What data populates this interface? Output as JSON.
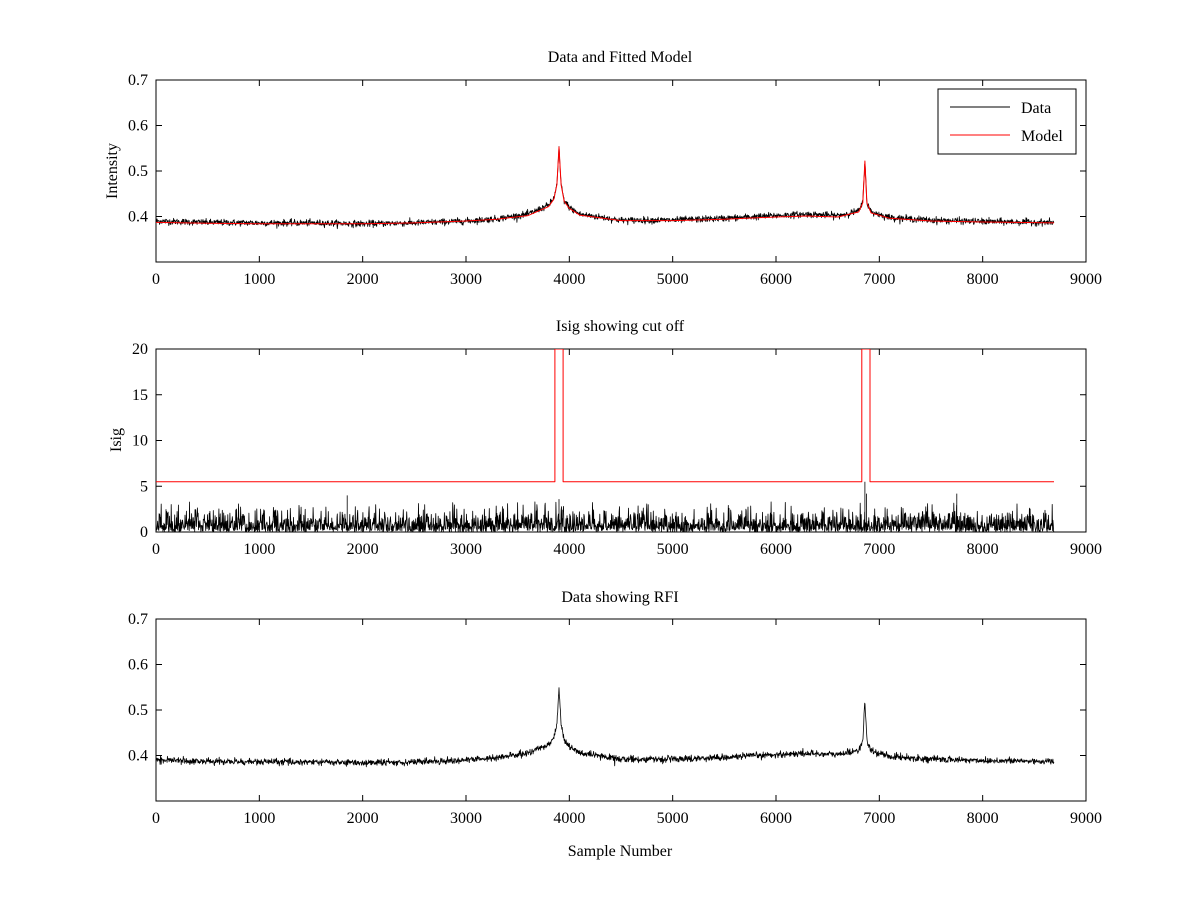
{
  "figure": {
    "background": "#ffffff"
  },
  "chart_data": [
    {
      "type": "line",
      "title": "Data and Fitted Model",
      "xlabel": "",
      "ylabel": "Intensity",
      "xlim": [
        0,
        9000
      ],
      "ylim": [
        0.3,
        0.7
      ],
      "xticks": [
        0,
        1000,
        2000,
        3000,
        4000,
        5000,
        6000,
        7000,
        8000,
        9000
      ],
      "yticks": [
        0.4,
        0.5,
        0.6,
        0.7
      ],
      "legend": {
        "placement": "top-right"
      },
      "grid": false,
      "series": [
        {
          "name": "Data",
          "color": "#000000",
          "kind": "noisy",
          "noise": 0.0035,
          "points": [
            [
              0,
              0.39
            ],
            [
              500,
              0.387
            ],
            [
              1000,
              0.386
            ],
            [
              1500,
              0.386
            ],
            [
              2000,
              0.384
            ],
            [
              2500,
              0.386
            ],
            [
              3000,
              0.39
            ],
            [
              3300,
              0.395
            ],
            [
              3600,
              0.405
            ],
            [
              3800,
              0.425
            ],
            [
              3850,
              0.44
            ],
            [
              3880,
              0.47
            ],
            [
              3900,
              0.55
            ],
            [
              3920,
              0.47
            ],
            [
              3950,
              0.435
            ],
            [
              4000,
              0.42
            ],
            [
              4100,
              0.405
            ],
            [
              4500,
              0.392
            ],
            [
              5000,
              0.392
            ],
            [
              5500,
              0.396
            ],
            [
              6000,
              0.402
            ],
            [
              6300,
              0.405
            ],
            [
              6600,
              0.402
            ],
            [
              6800,
              0.412
            ],
            [
              6840,
              0.43
            ],
            [
              6860,
              0.525
            ],
            [
              6880,
              0.43
            ],
            [
              6920,
              0.41
            ],
            [
              7100,
              0.398
            ],
            [
              7500,
              0.392
            ],
            [
              8000,
              0.389
            ],
            [
              8690,
              0.387
            ]
          ]
        },
        {
          "name": "Model",
          "color": "#ff0000",
          "kind": "smooth",
          "points": [
            [
              0,
              0.387
            ],
            [
              500,
              0.385
            ],
            [
              1000,
              0.384
            ],
            [
              1500,
              0.384
            ],
            [
              2000,
              0.384
            ],
            [
              2500,
              0.386
            ],
            [
              3000,
              0.39
            ],
            [
              3300,
              0.394
            ],
            [
              3600,
              0.402
            ],
            [
              3800,
              0.422
            ],
            [
              3850,
              0.438
            ],
            [
              3880,
              0.47
            ],
            [
              3900,
              0.553
            ],
            [
              3920,
              0.47
            ],
            [
              3950,
              0.433
            ],
            [
              4000,
              0.418
            ],
            [
              4100,
              0.403
            ],
            [
              4500,
              0.391
            ],
            [
              5000,
              0.391
            ],
            [
              5500,
              0.394
            ],
            [
              6000,
              0.399
            ],
            [
              6300,
              0.401
            ],
            [
              6600,
              0.399
            ],
            [
              6800,
              0.41
            ],
            [
              6840,
              0.43
            ],
            [
              6860,
              0.522
            ],
            [
              6880,
              0.43
            ],
            [
              6920,
              0.408
            ],
            [
              7100,
              0.396
            ],
            [
              7500,
              0.39
            ],
            [
              8000,
              0.388
            ],
            [
              8690,
              0.386
            ]
          ]
        }
      ]
    },
    {
      "type": "line",
      "title": "Isig showing cut off",
      "xlabel": "",
      "ylabel": "Isig",
      "xlim": [
        0,
        9000
      ],
      "ylim": [
        0,
        20
      ],
      "xticks": [
        0,
        1000,
        2000,
        3000,
        4000,
        5000,
        6000,
        7000,
        8000,
        9000
      ],
      "yticks": [
        0,
        5,
        10,
        15,
        20
      ],
      "grid": false,
      "series": [
        {
          "color": "#000000",
          "kind": "spiky",
          "noise": 1.2,
          "spikes": [
            [
              1850,
              4.0
            ],
            [
              3900,
              3.6
            ],
            [
              6860,
              5.5
            ],
            [
              6875,
              4.2
            ],
            [
              7750,
              4.2
            ]
          ],
          "points": [
            [
              0,
              0
            ],
            [
              8690,
              0
            ]
          ]
        },
        {
          "color": "#ff0000",
          "kind": "step",
          "points": [
            [
              0,
              5.5
            ],
            [
              3860,
              5.5
            ],
            [
              3860,
              20
            ],
            [
              3940,
              20
            ],
            [
              3940,
              5.5
            ],
            [
              6830,
              5.5
            ],
            [
              6830,
              20
            ],
            [
              6910,
              20
            ],
            [
              6910,
              5.5
            ],
            [
              8690,
              5.5
            ]
          ]
        }
      ]
    },
    {
      "type": "line",
      "title": "Data showing RFI",
      "xlabel": "Sample Number",
      "ylabel": "",
      "xlim": [
        0,
        9000
      ],
      "ylim": [
        0.3,
        0.7
      ],
      "xticks": [
        0,
        1000,
        2000,
        3000,
        4000,
        5000,
        6000,
        7000,
        8000,
        9000
      ],
      "yticks": [
        0.4,
        0.5,
        0.6,
        0.7
      ],
      "grid": false,
      "series": [
        {
          "color": "#000000",
          "kind": "noisy",
          "noise": 0.0035,
          "points": [
            [
              0,
              0.39
            ],
            [
              500,
              0.387
            ],
            [
              1000,
              0.386
            ],
            [
              1500,
              0.386
            ],
            [
              2000,
              0.384
            ],
            [
              2500,
              0.386
            ],
            [
              3000,
              0.39
            ],
            [
              3300,
              0.395
            ],
            [
              3600,
              0.405
            ],
            [
              3800,
              0.425
            ],
            [
              3850,
              0.44
            ],
            [
              3880,
              0.47
            ],
            [
              3900,
              0.548
            ],
            [
              3920,
              0.47
            ],
            [
              3950,
              0.435
            ],
            [
              4000,
              0.42
            ],
            [
              4100,
              0.405
            ],
            [
              4500,
              0.392
            ],
            [
              5000,
              0.392
            ],
            [
              5500,
              0.396
            ],
            [
              6000,
              0.402
            ],
            [
              6300,
              0.405
            ],
            [
              6600,
              0.402
            ],
            [
              6800,
              0.412
            ],
            [
              6840,
              0.43
            ],
            [
              6860,
              0.523
            ],
            [
              6880,
              0.43
            ],
            [
              6920,
              0.41
            ],
            [
              7100,
              0.398
            ],
            [
              7500,
              0.392
            ],
            [
              8000,
              0.389
            ],
            [
              8690,
              0.387
            ]
          ]
        }
      ]
    }
  ]
}
